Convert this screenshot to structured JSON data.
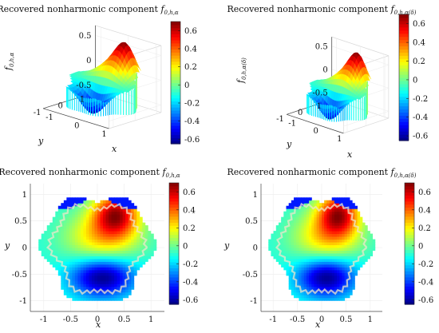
{
  "chart_data": [
    {
      "type": "surface",
      "view": "3d",
      "title": "Recovered nonharmonic component f_{0,h,α}",
      "title_text": "Recovered nonharmonic component ",
      "title_math": "f",
      "title_sub": "0,h,α",
      "xlabel": "x",
      "ylabel": "y",
      "zlabel": "f",
      "zlabel_sub": "0,h,α",
      "xticks": [
        "-1",
        "0",
        "1"
      ],
      "yticks": [
        "-1",
        "0",
        "1"
      ],
      "zticks": [
        "0.5",
        "0",
        "-0.5"
      ],
      "xlim": [
        -1.2,
        1.2
      ],
      "ylim": [
        -1.2,
        1.2
      ],
      "zlim": [
        -0.65,
        0.7
      ],
      "colorbar": {
        "ticks": [
          "0.6",
          "0.4",
          "0.2",
          "0",
          "-0.2",
          "-0.4",
          "-0.6"
        ],
        "range": [
          -0.65,
          0.7
        ]
      }
    },
    {
      "type": "surface",
      "view": "3d",
      "title": "Recovered nonharmonic component f_{0,h,α(δ)}",
      "title_text": "Recovered nonharmonic component ",
      "title_math": "f",
      "title_sub": "0,h,α(δ)",
      "xlabel": "x",
      "ylabel": "y",
      "zlabel": "f",
      "zlabel_sub": "0,h,α(δ)",
      "xticks": [
        "-1",
        "0",
        "1"
      ],
      "yticks": [
        "-1",
        "0",
        "1"
      ],
      "zticks": [
        "0.5",
        "0",
        "-0.5"
      ],
      "xlim": [
        -1.2,
        1.2
      ],
      "ylim": [
        -1.2,
        1.2
      ],
      "zlim": [
        -0.65,
        0.7
      ],
      "colorbar": {
        "ticks": [
          "0.6",
          "0.4",
          "0.2",
          "0",
          "-0.2",
          "-0.4",
          "-0.6"
        ],
        "range": [
          -0.65,
          0.7
        ]
      }
    },
    {
      "type": "heatmap",
      "view": "top",
      "title": "Recovered nonharmonic component f_{0,h,α}",
      "title_text": "Recovered nonharmonic component ",
      "title_math": "f",
      "title_sub": "0,h,α",
      "xlabel": "x",
      "ylabel": "y",
      "xticks": [
        "-1",
        "-0.5",
        "0",
        "0.5",
        "1"
      ],
      "yticks": [
        "1",
        "0.5",
        "0",
        "-0.5",
        "-1"
      ],
      "xlim": [
        -1.25,
        1.25
      ],
      "ylim": [
        -1.2,
        1.2
      ],
      "colorbar": {
        "ticks": [
          "0.6",
          "0.4",
          "0.2",
          "0",
          "-0.2",
          "-0.4",
          "-0.6"
        ],
        "range": [
          -0.65,
          0.7
        ]
      }
    },
    {
      "type": "heatmap",
      "view": "top",
      "title": "Recovered nonharmonic component f_{0,h,α(δ)}",
      "title_text": "Recovered nonharmonic component ",
      "title_math": "f",
      "title_sub": "0,h,α(δ)",
      "xlabel": "x",
      "ylabel": "y",
      "xticks": [
        "-1",
        "-0.5",
        "0",
        "0.5",
        "1"
      ],
      "yticks": [
        "1",
        "0.5",
        "0",
        "-0.5",
        "-1"
      ],
      "xlim": [
        -1.25,
        1.25
      ],
      "ylim": [
        -1.2,
        1.2
      ],
      "colorbar": {
        "ticks": [
          "0.6",
          "0.4",
          "0.2",
          "0",
          "-0.2",
          "-0.4",
          "-0.6"
        ],
        "range": [
          -0.65,
          0.7
        ]
      }
    }
  ]
}
